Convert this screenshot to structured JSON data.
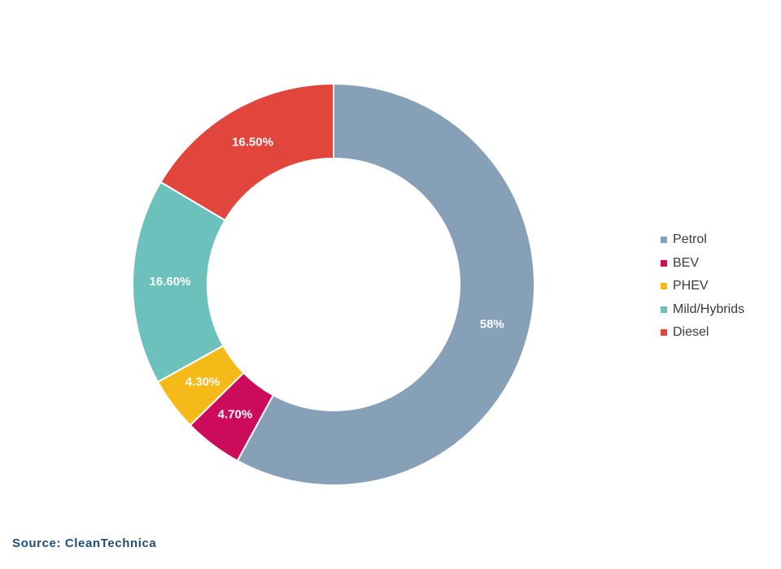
{
  "chart_data": {
    "type": "pie",
    "donut": true,
    "categories": [
      "Petrol",
      "BEV",
      "PHEV",
      "Mild/Hybrids",
      "Diesel"
    ],
    "values": [
      58,
      4.7,
      4.3,
      16.6,
      16.5
    ],
    "data_labels": [
      "58%",
      "4.70%",
      "4.30%",
      "16.60%",
      "16.50%"
    ],
    "colors": [
      "#86a0b8",
      "#cc0c5a",
      "#f5b918",
      "#6cc1bd",
      "#e2453b"
    ],
    "legend_position": "right"
  },
  "source": "Source: CleanTechnica"
}
